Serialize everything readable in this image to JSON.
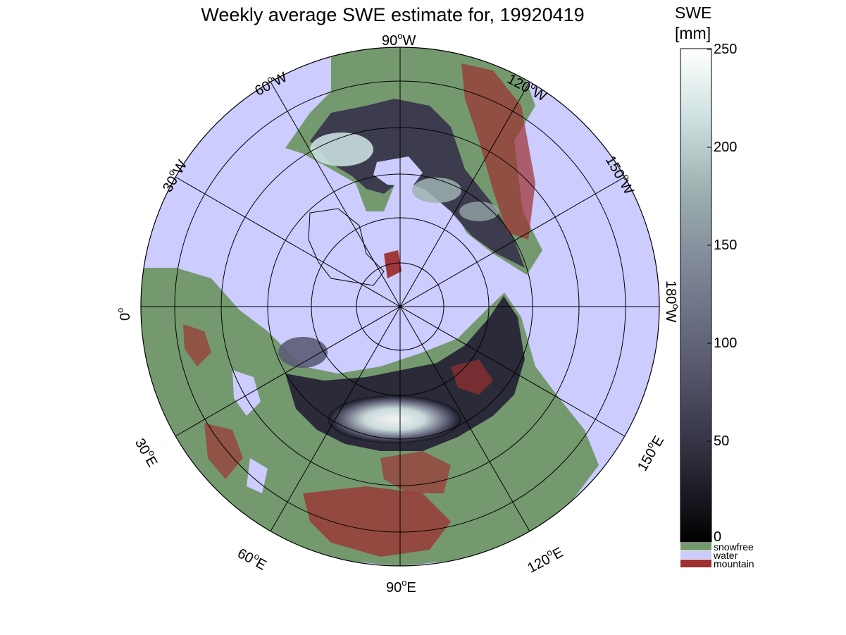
{
  "figure": {
    "title": "Weekly average SWE estimate for, 19920419",
    "colorbar": {
      "title_line1": "SWE",
      "title_line2": "[mm]",
      "ticks": [
        "250",
        "200",
        "150",
        "100",
        "50",
        "0"
      ],
      "range": [
        0,
        250
      ],
      "colors": [
        "#000000",
        "#2d2d3c",
        "#5b5c74",
        "#7d8596",
        "#9fb2b2",
        "#d2e3e3",
        "#ffffff"
      ]
    },
    "legend": [
      {
        "label": "snowfree",
        "color": "#74996f"
      },
      {
        "label": "water",
        "color": "#ccccff"
      },
      {
        "label": "mountain",
        "color": "#9e3030"
      }
    ],
    "longitude_labels": [
      {
        "deg": "90",
        "hemi": "W"
      },
      {
        "deg": "120",
        "hemi": "W"
      },
      {
        "deg": "150",
        "hemi": "W"
      },
      {
        "deg": "180",
        "hemi": "W"
      },
      {
        "deg": "150",
        "hemi": "E"
      },
      {
        "deg": "120",
        "hemi": "E"
      },
      {
        "deg": "90",
        "hemi": "E"
      },
      {
        "deg": "60",
        "hemi": "E"
      },
      {
        "deg": "30",
        "hemi": "E"
      },
      {
        "deg": "0",
        "hemi": ""
      },
      {
        "deg": "30",
        "hemi": "W"
      },
      {
        "deg": "60",
        "hemi": "W"
      }
    ],
    "map": {
      "projection": "north polar stereographic",
      "water_color": "#ccccff",
      "land_color": "#74996f",
      "mountain_color": "#9e3030"
    }
  }
}
